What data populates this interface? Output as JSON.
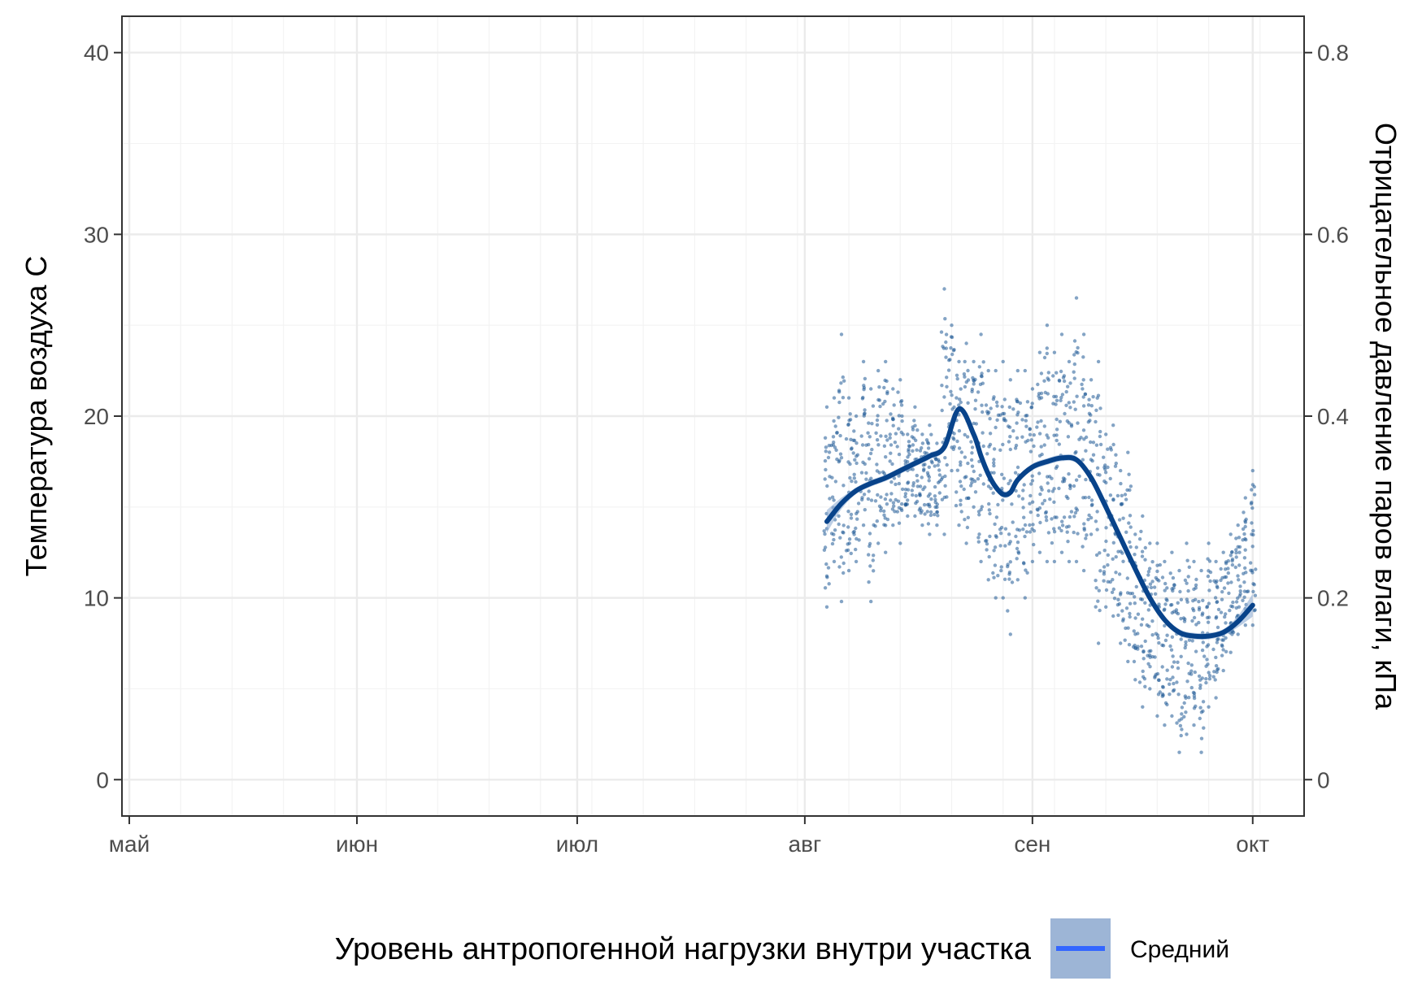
{
  "chart_data": {
    "type": "scatter",
    "x_axis": {
      "type": "date",
      "ticks": [
        "май",
        "июн",
        "июл",
        "авг",
        "сен",
        "окт"
      ],
      "tick_dates": [
        "05-01",
        "06-01",
        "07-01",
        "08-01",
        "09-01",
        "10-01"
      ]
    },
    "y_left": {
      "label": "Температура воздуха   С",
      "ticks": [
        0,
        10,
        20,
        30,
        40
      ],
      "lim": [
        -2,
        42
      ]
    },
    "y_right": {
      "label": "Отрицательное давление паров влаги, кПа",
      "ticks": [
        "0",
        "0.2",
        "0.4",
        "0.6",
        "0.8"
      ],
      "tick_values": [
        0,
        0.2,
        0.4,
        0.6,
        0.8
      ]
    },
    "legend": {
      "title": "Уровень антропогенной нагрузки внутри участка",
      "entries": [
        {
          "label": "Средний",
          "color": "#3366ff"
        }
      ],
      "position": "bottom"
    },
    "grid": true,
    "colors": {
      "points": "#1f5a96",
      "smooth_line": "#08438a",
      "ribbon": "#8faed4",
      "legend_key_fill": "#9db5d6",
      "legend_key_line": "#3366ff"
    },
    "series": [
      {
        "name": "Средний",
        "type": "smooth",
        "x": [
          "08-04",
          "08-06",
          "08-08",
          "08-10",
          "08-12",
          "08-14",
          "08-16",
          "08-18",
          "08-20",
          "08-22",
          "08-24",
          "08-25",
          "08-26",
          "08-27",
          "08-28",
          "08-29",
          "08-30",
          "09-01",
          "09-03",
          "09-05",
          "09-07",
          "09-09",
          "09-11",
          "09-13",
          "09-15",
          "09-17",
          "09-19",
          "09-21",
          "09-23",
          "09-25",
          "09-27",
          "09-29",
          "10-01"
        ],
        "y": [
          14.2,
          15.2,
          15.9,
          16.3,
          16.6,
          17.0,
          17.4,
          17.8,
          18.3,
          20.4,
          19.0,
          17.8,
          16.8,
          16.1,
          15.7,
          15.8,
          16.5,
          17.2,
          17.5,
          17.7,
          17.6,
          16.6,
          15.0,
          13.3,
          11.6,
          10.0,
          8.8,
          8.1,
          7.9,
          7.9,
          8.1,
          8.7,
          9.6
        ]
      },
      {
        "name": "Средний",
        "type": "points",
        "note": "daily ranges of hourly readings",
        "x": [
          "08-04",
          "08-05",
          "08-06",
          "08-07",
          "08-08",
          "08-09",
          "08-10",
          "08-11",
          "08-12",
          "08-13",
          "08-14",
          "08-15",
          "08-16",
          "08-17",
          "08-18",
          "08-19",
          "08-20",
          "08-21",
          "08-22",
          "08-23",
          "08-24",
          "08-25",
          "08-26",
          "08-27",
          "08-28",
          "08-29",
          "08-30",
          "08-31",
          "09-01",
          "09-02",
          "09-03",
          "09-04",
          "09-05",
          "09-06",
          "09-07",
          "09-08",
          "09-09",
          "09-10",
          "09-11",
          "09-12",
          "09-13",
          "09-14",
          "09-15",
          "09-16",
          "09-17",
          "09-18",
          "09-19",
          "09-20",
          "09-21",
          "09-22",
          "09-23",
          "09-24",
          "09-25",
          "09-26",
          "09-27",
          "09-28",
          "09-29",
          "09-30",
          "10-01"
        ],
        "y_min": [
          9.5,
          12.0,
          9.8,
          11.5,
          12.0,
          14.0,
          9.8,
          13.0,
          12.5,
          14.0,
          13.0,
          14.5,
          14.5,
          14.0,
          13.5,
          14.0,
          13.5,
          17.0,
          14.0,
          13.0,
          15.0,
          12.0,
          11.0,
          10.0,
          10.0,
          8.0,
          11.0,
          10.0,
          12.0,
          12.5,
          12.0,
          12.0,
          12.5,
          12.0,
          12.0,
          11.5,
          13.5,
          7.5,
          9.5,
          9.0,
          7.5,
          6.5,
          5.5,
          4.0,
          5.0,
          3.5,
          3.0,
          3.5,
          1.5,
          2.5,
          3.0,
          1.5,
          4.0,
          4.5,
          6.0,
          7.0,
          8.0,
          8.5,
          8.5
        ],
        "y_max": [
          20.5,
          21.0,
          24.5,
          21.0,
          20.0,
          23.0,
          21.5,
          22.5,
          23.0,
          21.5,
          22.0,
          19.0,
          20.5,
          19.0,
          19.5,
          18.5,
          27.0,
          25.0,
          23.0,
          24.0,
          23.0,
          24.5,
          22.5,
          22.5,
          23.0,
          22.0,
          22.5,
          22.5,
          21.5,
          23.5,
          25.0,
          23.5,
          24.5,
          23.0,
          26.5,
          24.5,
          22.0,
          23.0,
          19.0,
          19.5,
          17.0,
          18.0,
          13.5,
          14.5,
          13.0,
          13.0,
          12.0,
          12.5,
          11.5,
          13.0,
          12.0,
          11.5,
          13.0,
          12.0,
          12.5,
          13.5,
          14.0,
          15.5,
          17.0
        ]
      }
    ]
  }
}
